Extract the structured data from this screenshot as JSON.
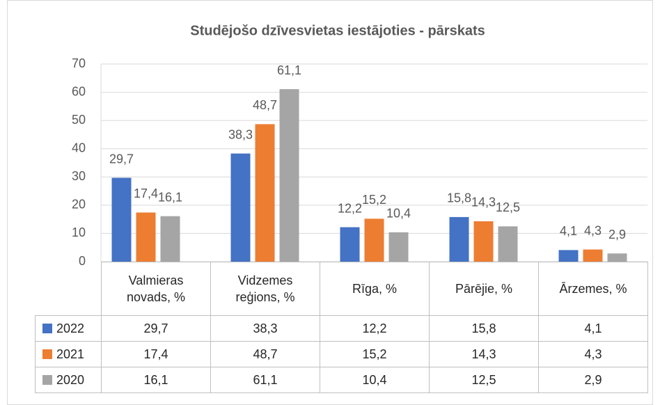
{
  "chart_data": {
    "type": "bar",
    "title": "Studējošo dzīvesvietas iestājoties - pārskats",
    "categories": [
      "Valmieras novads, %",
      "Vidzemes reģions, %",
      "Rīga, %",
      "Pārējie, %",
      "Ārzemes, %"
    ],
    "series": [
      {
        "name": "2022",
        "color": "#4472c4",
        "values": [
          29.7,
          38.3,
          12.2,
          15.8,
          4.1
        ],
        "value_labels": [
          "29,7",
          "38,3",
          "12,2",
          "15,8",
          "4,1"
        ]
      },
      {
        "name": "2021",
        "color": "#ed7d31",
        "values": [
          17.4,
          48.7,
          15.2,
          14.3,
          4.3
        ],
        "value_labels": [
          "17,4",
          "48,7",
          "15,2",
          "14,3",
          "4,3"
        ]
      },
      {
        "name": "2020",
        "color": "#a5a5a5",
        "values": [
          16.1,
          61.1,
          10.4,
          12.5,
          2.9
        ],
        "value_labels": [
          "16,1",
          "61,1",
          "10,4",
          "12,5",
          "2,9"
        ]
      }
    ],
    "ylim": [
      0,
      70
    ],
    "yticks": [
      0,
      10,
      20,
      30,
      40,
      50,
      60,
      70
    ],
    "grid": true
  }
}
